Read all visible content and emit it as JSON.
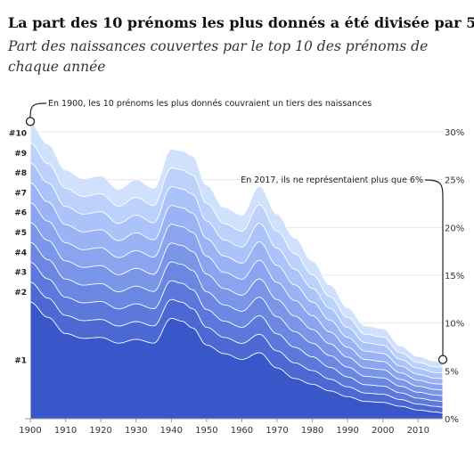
{
  "chart_data": {
    "type": "area",
    "title": "La part des 10 prénoms les plus donnés a été divisée par 5",
    "subtitle": "Part des naissances couvertes par le top 10 des prénoms de chaque année",
    "x_ticks": [
      1900,
      1910,
      1920,
      1930,
      1940,
      1950,
      1960,
      1970,
      1980,
      1990,
      2000,
      2010
    ],
    "y_ticks": [
      "0%",
      "5%",
      "10%",
      "15%",
      "20%",
      "25%",
      "30%"
    ],
    "xlim": [
      1900,
      2017
    ],
    "ylim": [
      0,
      30
    ],
    "stack_order": [
      "#1",
      "#2",
      "#3",
      "#4",
      "#5",
      "#6",
      "#7",
      "#8",
      "#9",
      "#10"
    ],
    "years": [
      1900,
      1905,
      1910,
      1915,
      1920,
      1925,
      1930,
      1935,
      1940,
      1943,
      1946,
      1950,
      1955,
      1960,
      1965,
      1970,
      1975,
      1980,
      1985,
      1990,
      1995,
      2000,
      2005,
      2010,
      2015,
      2017
    ],
    "total": [
      30.9,
      28.7,
      26.0,
      25.1,
      25.4,
      24.0,
      25.0,
      24.1,
      28.2,
      28.0,
      27.5,
      24.4,
      22.1,
      21.3,
      24.3,
      21.4,
      18.9,
      16.5,
      14.0,
      11.6,
      9.7,
      9.4,
      7.6,
      6.5,
      6.0,
      6.0
    ],
    "first_share": [
      12.2,
      10.6,
      8.9,
      8.4,
      8.5,
      7.9,
      8.3,
      7.9,
      10.5,
      10.2,
      9.5,
      7.7,
      6.8,
      6.2,
      6.9,
      5.3,
      4.2,
      3.6,
      2.9,
      2.3,
      1.8,
      1.7,
      1.3,
      0.9,
      0.7,
      0.6
    ],
    "series": [
      {
        "name": "#1",
        "color": "#3a57c9"
      },
      {
        "name": "#2",
        "color": "#4c68d2"
      },
      {
        "name": "#3",
        "color": "#5c78db"
      },
      {
        "name": "#4",
        "color": "#6b87e2"
      },
      {
        "name": "#5",
        "color": "#7a96e9"
      },
      {
        "name": "#6",
        "color": "#8aa4ef"
      },
      {
        "name": "#7",
        "color": "#9ab3f4"
      },
      {
        "name": "#8",
        "color": "#abc3f8"
      },
      {
        "name": "#9",
        "color": "#bcd2fb"
      },
      {
        "name": "#10",
        "color": "#cfe1fd"
      }
    ],
    "annotations": [
      {
        "text": "En 1900, les 10 prénoms les plus donnés couvraient un tiers des naissances",
        "x": 1900,
        "y": 30.9
      },
      {
        "text": "En 2017, ils ne représentaient plus que 6%",
        "x": 2017,
        "y": 6.0
      }
    ]
  }
}
